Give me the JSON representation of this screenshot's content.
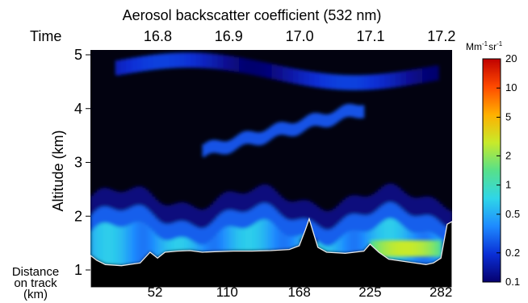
{
  "chart_data": {
    "type": "heatmap",
    "title": "Aerosol backscatter coefficient (532 nm)",
    "ylabel": "Altitude (km)",
    "time_label": "Time",
    "distance_label_lines": [
      "Distance",
      "on track",
      "(km)"
    ],
    "ylim": [
      1,
      5
    ],
    "yticks": [
      1,
      2,
      3,
      4,
      5
    ],
    "time_ticks": [
      16.8,
      16.9,
      17.0,
      17.1,
      17.2
    ],
    "time_range": [
      16.705,
      17.215
    ],
    "time_tick_labels": [
      "16.8",
      "16.9",
      "17.0",
      "17.1",
      "17.2"
    ],
    "distance_ticks": [
      52,
      110,
      168,
      225,
      282
    ],
    "distance_range": [
      0,
      291
    ],
    "colorbar": {
      "unit_label": "Mm",
      "unit_exp1": "-1",
      "unit_mid": "sr",
      "unit_exp2": "-1",
      "scale": "log",
      "range": [
        0.1,
        20
      ],
      "ticks": [
        0.1,
        0.2,
        0.5,
        1,
        2,
        5,
        10,
        20
      ],
      "tick_labels": [
        "0.1",
        "0.2",
        "0.5",
        "1",
        "2",
        "5",
        "10",
        "20"
      ],
      "colors": [
        "#06006e",
        "#0a2fd6",
        "#1e8aff",
        "#2fd6e8",
        "#57e08a",
        "#c8ea2a",
        "#ffb000",
        "#ff4a00",
        "#c00000"
      ]
    },
    "surface_profile": {
      "distance_km": [
        0,
        5,
        12,
        25,
        40,
        48,
        54,
        60,
        70,
        80,
        90,
        100,
        115,
        130,
        145,
        160,
        168,
        173,
        176,
        179,
        183,
        190,
        205,
        220,
        225,
        232,
        240,
        255,
        270,
        276,
        282,
        287,
        291
      ],
      "altitude_km": [
        1.27,
        1.18,
        1.1,
        1.08,
        1.13,
        1.33,
        1.22,
        1.33,
        1.35,
        1.36,
        1.33,
        1.34,
        1.35,
        1.35,
        1.36,
        1.38,
        1.45,
        1.75,
        1.95,
        1.72,
        1.42,
        1.33,
        1.31,
        1.35,
        1.48,
        1.33,
        1.2,
        1.15,
        1.1,
        1.13,
        1.22,
        1.85,
        1.9
      ]
    },
    "layers": [
      {
        "name": "boundary_layer",
        "d0": 0,
        "d1": 291,
        "top_km": 2.0,
        "value": 0.5
      },
      {
        "name": "elevated_layer",
        "d0": 90,
        "d1": 220,
        "base_km": 3.2,
        "top_km": 4.0,
        "value": 0.25
      },
      {
        "name": "upper_layer",
        "d0": 20,
        "d1": 280,
        "base_km": 4.5,
        "top_km": 5.0,
        "value": 0.2
      },
      {
        "name": "enhanced_region",
        "d0": 225,
        "d1": 282,
        "base_km": 1.25,
        "top_km": 1.55,
        "value": 2.5
      }
    ]
  }
}
